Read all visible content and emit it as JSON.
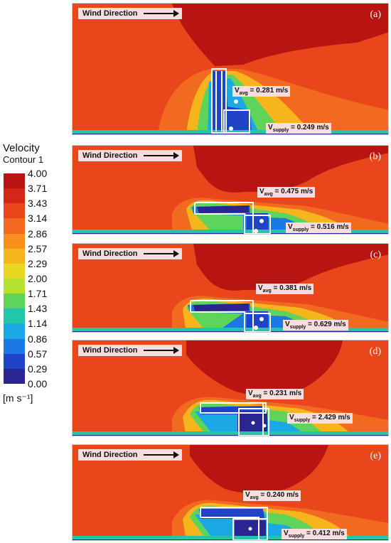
{
  "legend": {
    "title_line1": "Velocity",
    "title_line2": "Contour 1",
    "unit": "[m s⁻¹]",
    "ticks": [
      "4.00",
      "3.71",
      "3.43",
      "3.14",
      "2.86",
      "2.57",
      "2.29",
      "2.00",
      "1.71",
      "1.43",
      "1.14",
      "0.86",
      "0.57",
      "0.29",
      "0.00"
    ],
    "colors": [
      "#b81412",
      "#d42718",
      "#e9461c",
      "#f26a1f",
      "#f8901e",
      "#f6b51c",
      "#e9d823",
      "#b5e131",
      "#5ed45a",
      "#24c6a8",
      "#1ba9e6",
      "#1b78e4",
      "#1f44c8",
      "#2a2590"
    ]
  },
  "wind_direction": "Wind Direction",
  "panels": [
    {
      "label": "(a)",
      "v_avg": "0.281 m/s",
      "v_supply": "0.249 m/s"
    },
    {
      "label": "(b)",
      "v_avg": "0.475 m/s",
      "v_supply": "0.516 m/s"
    },
    {
      "label": "(c)",
      "v_avg": "0.381 m/s",
      "v_supply": "0.629 m/s"
    },
    {
      "label": "(d)",
      "v_avg": "0.231 m/s",
      "v_supply": "2.429 m/s"
    },
    {
      "label": "(e)",
      "v_avg": "0.240 m/s",
      "v_supply": "0.412 m/s"
    }
  ],
  "symbols": {
    "v": "V",
    "avg_sub": "avg",
    "supply_sub": "supply",
    "eq": " = "
  }
}
